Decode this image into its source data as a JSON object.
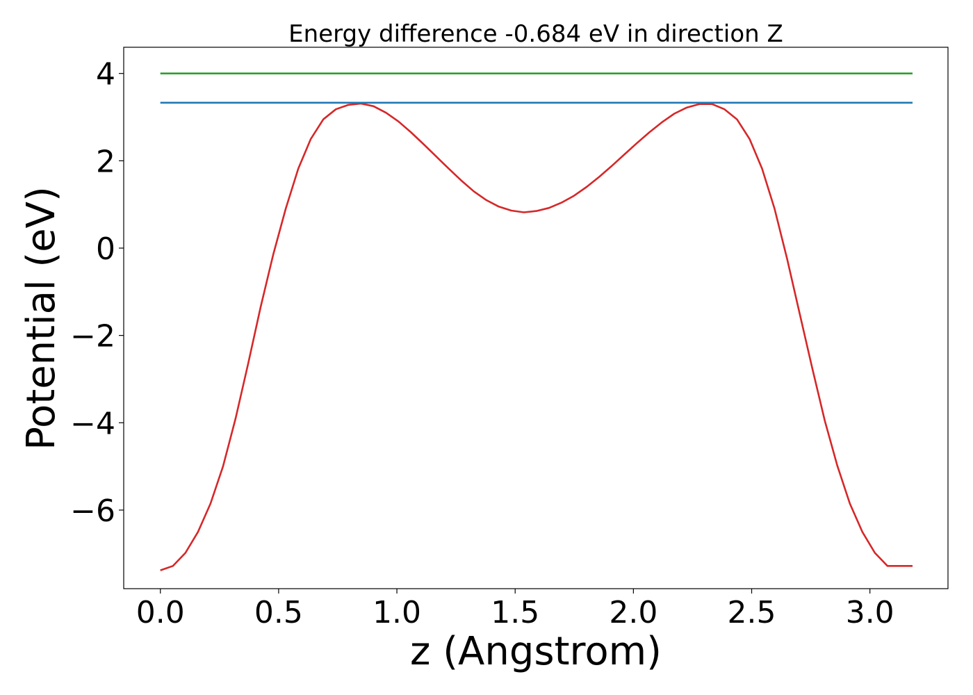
{
  "chart_data": {
    "type": "line",
    "title": "Energy difference -0.684 eV in direction Z",
    "xlabel": "z (Angstrom)",
    "ylabel": "Potential (eV)",
    "xlim": [
      -0.155,
      3.33
    ],
    "ylim": [
      -7.8,
      4.6
    ],
    "xticks": [
      0.0,
      0.5,
      1.0,
      1.5,
      2.0,
      2.5,
      3.0
    ],
    "xtick_labels": [
      "0.0",
      "0.5",
      "1.0",
      "1.5",
      "2.0",
      "2.5",
      "3.0"
    ],
    "yticks": [
      4,
      2,
      0,
      -2,
      -4,
      -6
    ],
    "ytick_labels": [
      "4",
      "2",
      "0",
      "−2",
      "−4",
      "−6"
    ],
    "grid": false,
    "series": [
      {
        "color": "#d62728",
        "x": [
          0.0,
          0.053,
          0.106,
          0.159,
          0.212,
          0.265,
          0.318,
          0.371,
          0.424,
          0.477,
          0.53,
          0.583,
          0.636,
          0.689,
          0.742,
          0.795,
          0.848,
          0.901,
          0.954,
          1.007,
          1.06,
          1.113,
          1.166,
          1.219,
          1.272,
          1.325,
          1.378,
          1.431,
          1.484,
          1.537,
          1.59,
          1.643,
          1.696,
          1.749,
          1.802,
          1.855,
          1.908,
          1.961,
          2.014,
          2.067,
          2.12,
          2.173,
          2.226,
          2.279,
          2.332,
          2.385,
          2.438,
          2.491,
          2.544,
          2.597,
          2.65,
          2.703,
          2.756,
          2.809,
          2.862,
          2.915,
          2.968,
          3.021,
          3.074,
          3.127,
          3.18
        ],
        "y": [
          -7.38,
          -7.28,
          -6.98,
          -6.5,
          -5.85,
          -5.0,
          -3.9,
          -2.65,
          -1.35,
          -0.15,
          0.9,
          1.82,
          2.5,
          2.95,
          3.18,
          3.28,
          3.31,
          3.25,
          3.1,
          2.9,
          2.65,
          2.38,
          2.1,
          1.82,
          1.55,
          1.3,
          1.1,
          0.95,
          0.86,
          0.82,
          0.85,
          0.92,
          1.04,
          1.2,
          1.4,
          1.63,
          1.88,
          2.14,
          2.4,
          2.65,
          2.88,
          3.08,
          3.22,
          3.3,
          3.3,
          3.18,
          2.95,
          2.5,
          1.82,
          0.9,
          -0.25,
          -1.5,
          -2.75,
          -3.95,
          -4.98,
          -5.85,
          -6.5,
          -6.98,
          -7.28,
          -7.28,
          -7.28
        ]
      },
      {
        "color": "#1f77b4",
        "x": [
          0.0,
          3.18
        ],
        "y": [
          3.33,
          3.33
        ]
      },
      {
        "color": "#2ca02c",
        "x": [
          0.0,
          3.18
        ],
        "y": [
          4.0,
          4.0
        ]
      }
    ]
  }
}
